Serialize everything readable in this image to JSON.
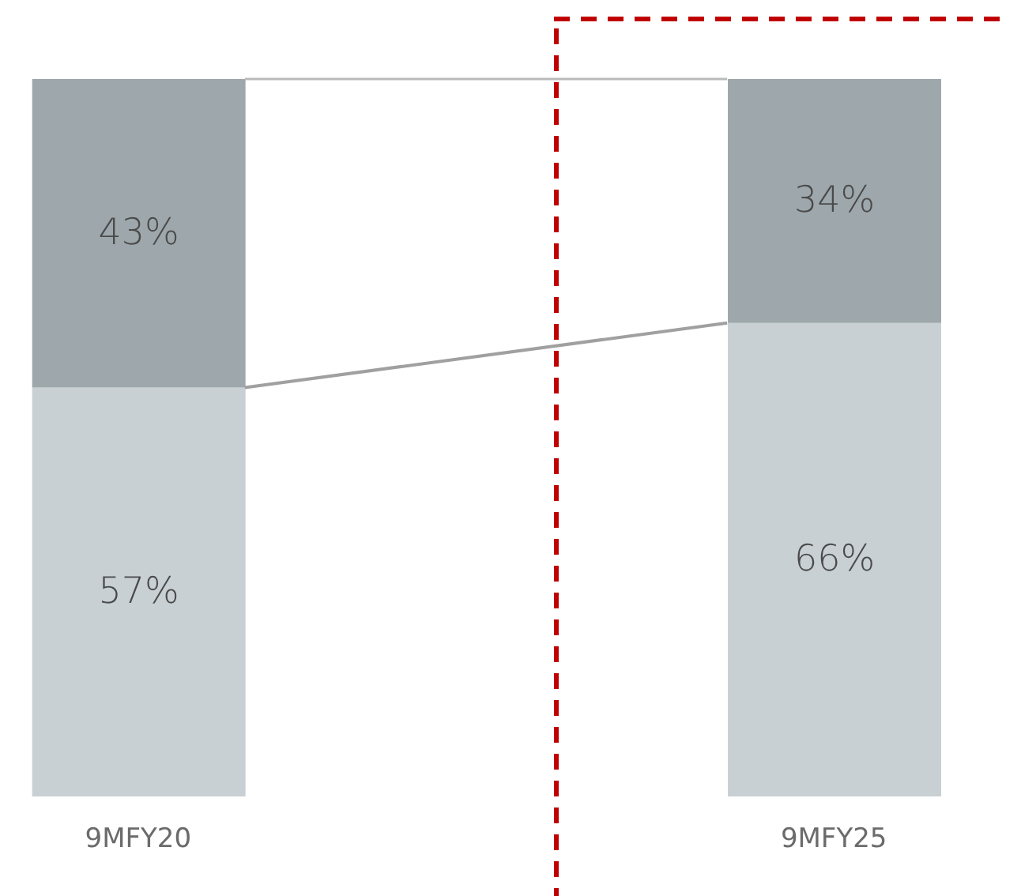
{
  "chart_data": {
    "type": "bar",
    "stacked": true,
    "categories": [
      "9MFY20",
      "9MFY25"
    ],
    "series": [
      {
        "color": "#c8d0d3",
        "values": [
          57,
          66
        ],
        "value_labels": [
          "57%",
          "66%"
        ]
      },
      {
        "color": "#9ea8ac",
        "values": [
          43,
          34
        ],
        "value_labels": [
          "43%",
          "34%"
        ]
      }
    ]
  }
}
